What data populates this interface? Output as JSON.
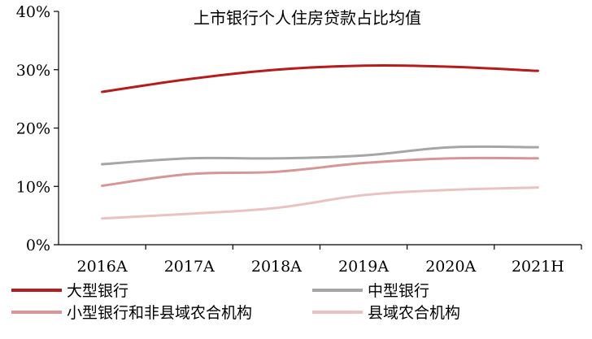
{
  "chart_data": {
    "type": "line",
    "title": "上市银行个人住房贷款占比均值",
    "xlabel": "",
    "ylabel": "",
    "categories": [
      "2016A",
      "2017A",
      "2018A",
      "2019A",
      "2020A",
      "2021H"
    ],
    "y_ticks": [
      "0%",
      "10%",
      "20%",
      "30%",
      "40%"
    ],
    "ylim": [
      0,
      40
    ],
    "grid": false,
    "legend_position": "bottom",
    "series": [
      {
        "name": "大型银行",
        "color": "#b71c1c",
        "values": [
          26.2,
          28.4,
          30.0,
          30.7,
          30.5,
          29.8
        ]
      },
      {
        "name": "中型银行",
        "color": "#a6a6a6",
        "values": [
          13.8,
          14.8,
          14.8,
          15.3,
          16.7,
          16.7
        ]
      },
      {
        "name": "小型银行和非县域农合机构",
        "color": "#d99595",
        "values": [
          10.1,
          12.1,
          12.5,
          14.0,
          14.8,
          14.8
        ]
      },
      {
        "name": "县域农合机构",
        "color": "#ebc2c2",
        "values": [
          4.5,
          5.3,
          6.3,
          8.5,
          9.4,
          9.8
        ]
      }
    ]
  }
}
